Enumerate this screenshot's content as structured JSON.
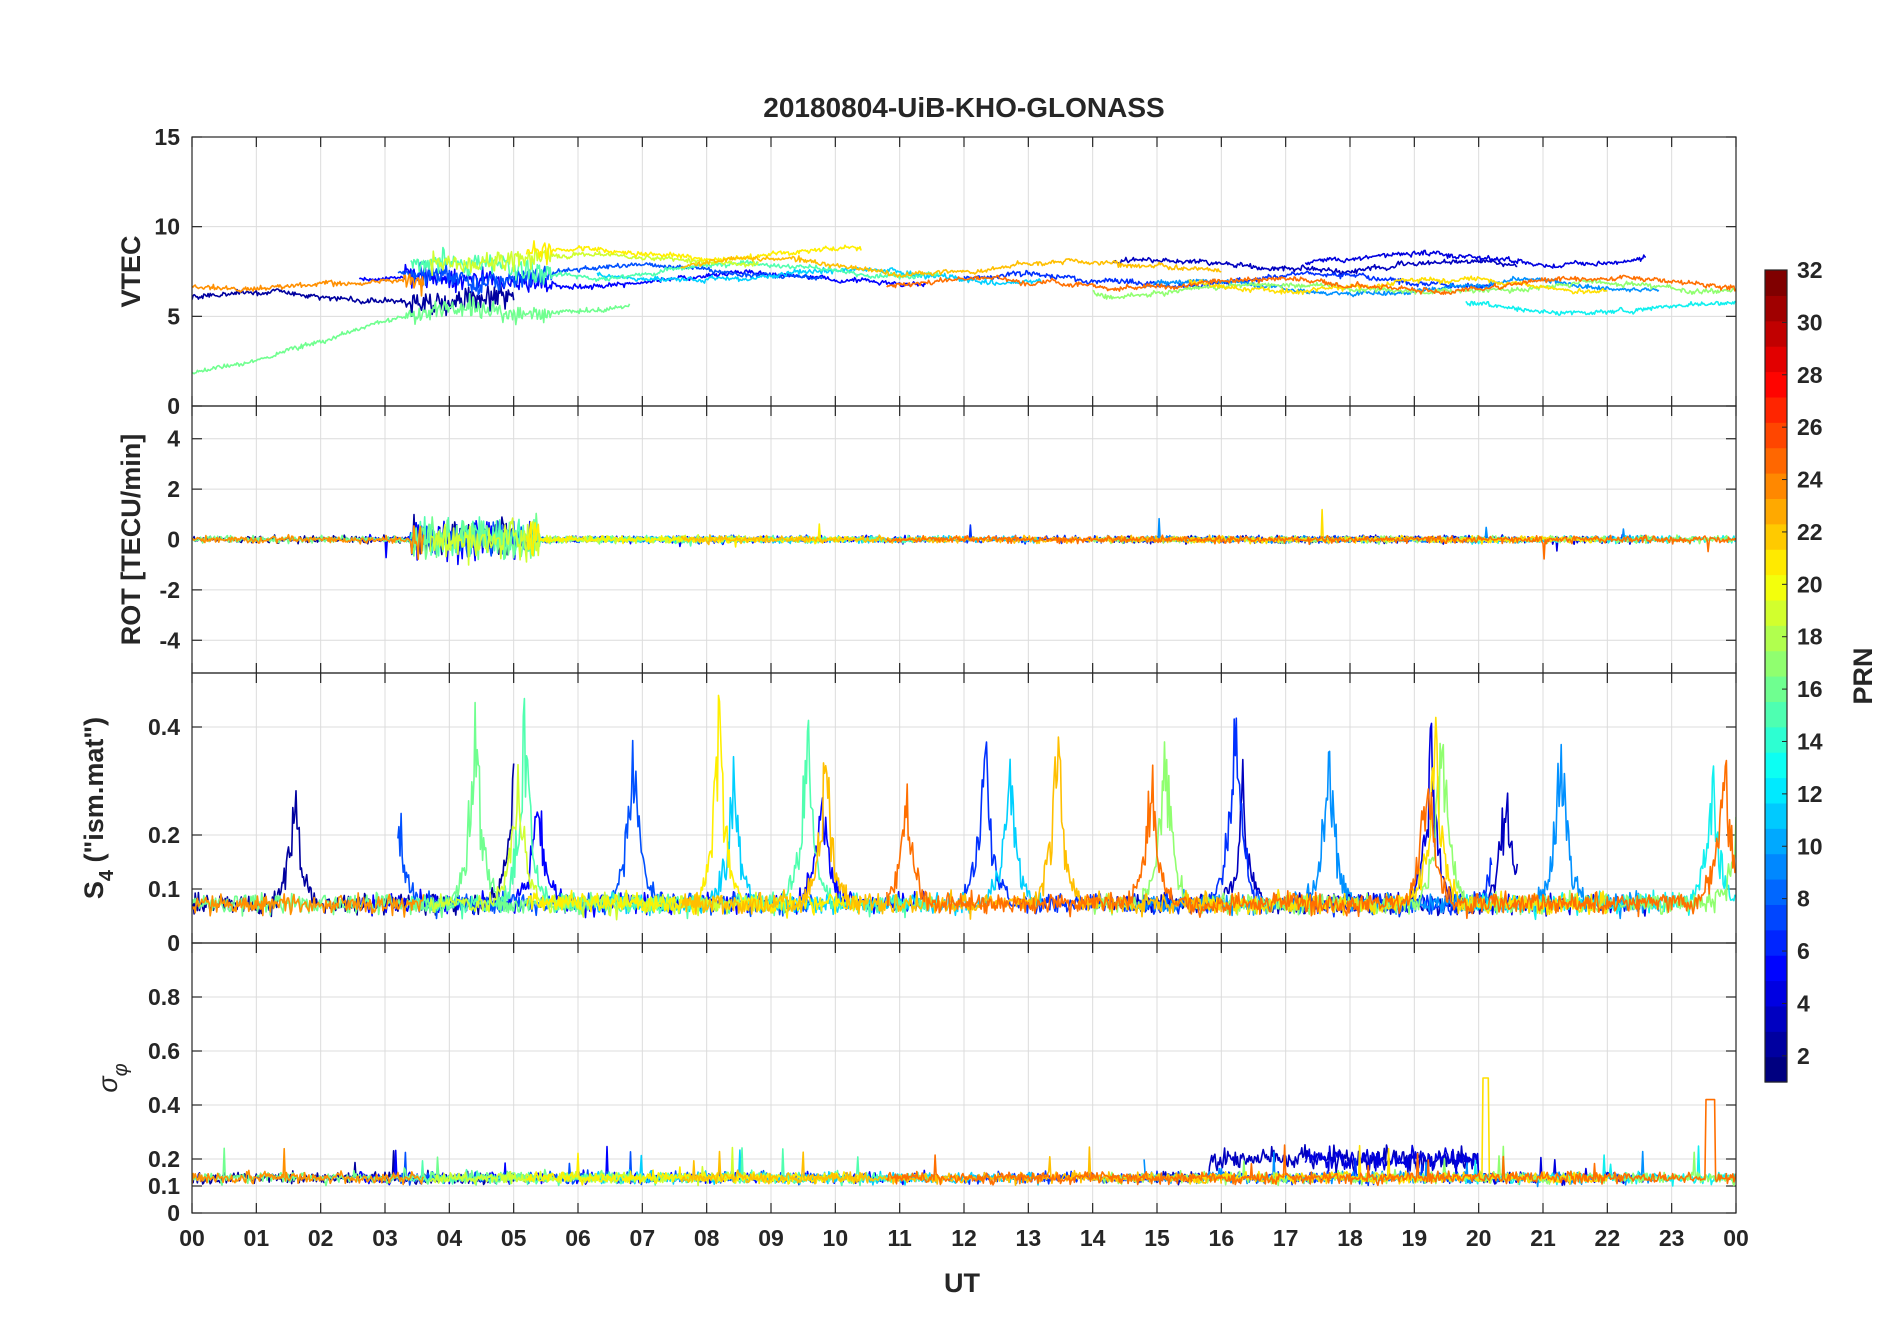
{
  "chart_data": [
    {
      "type": "line",
      "title": "20180804-UiB-KHO-GLONASS",
      "ylabel": "VTEC",
      "ylim": [
        0,
        15
      ],
      "yticks": [
        0,
        5,
        10,
        15
      ],
      "yticklabels": [
        "0",
        "5",
        "10",
        "15"
      ],
      "xlim": [
        0,
        24
      ],
      "series_description": "Vertical TEC per GLONASS PRN",
      "trend_profile": "vtec"
    },
    {
      "type": "line",
      "ylabel": "ROT [TECU/min]",
      "ylim": [
        -5.3,
        5.3
      ],
      "yticks": [
        -4,
        -2,
        0,
        2,
        4
      ],
      "yticklabels": [
        "-4",
        "-2",
        "0",
        "2",
        "4"
      ],
      "xlim": [
        0,
        24
      ],
      "trend_profile": "rot"
    },
    {
      "type": "line",
      "ylabel": "S4 (\"ism.mat\")",
      "ylabel_main": "S",
      "ylabel_sub": "4",
      "ylabel_rest": " (\"ism.mat\")",
      "ylim": [
        0,
        0.5
      ],
      "yticks": [
        0,
        0.1,
        0.2,
        0.4
      ],
      "yticklabels": [
        "0",
        "0.1",
        "0.2",
        "0.4"
      ],
      "xlim": [
        0,
        24
      ],
      "trend_profile": "s4"
    },
    {
      "type": "line",
      "ylabel": "σφ",
      "ylabel_main": "σ",
      "ylabel_sub": "φ",
      "ylim": [
        0,
        1
      ],
      "yticks": [
        0,
        0.1,
        0.2,
        0.4,
        0.6,
        0.8
      ],
      "yticklabels": [
        "0",
        "0.1",
        "0.2",
        "0.4",
        "0.6",
        "0.8"
      ],
      "xlim": [
        0,
        24
      ],
      "trend_profile": "sigphi"
    }
  ],
  "x_axis": {
    "label": "UT",
    "ticks": [
      0,
      1,
      2,
      3,
      4,
      5,
      6,
      7,
      8,
      9,
      10,
      11,
      12,
      13,
      14,
      15,
      16,
      17,
      18,
      19,
      20,
      21,
      22,
      23,
      24
    ],
    "ticklabels": [
      "00",
      "01",
      "02",
      "03",
      "04",
      "05",
      "06",
      "07",
      "08",
      "09",
      "10",
      "11",
      "12",
      "13",
      "14",
      "15",
      "16",
      "17",
      "18",
      "19",
      "20",
      "21",
      "22",
      "23",
      "00"
    ]
  },
  "colorbar": {
    "label": "PRN",
    "range": [
      1,
      32
    ],
    "ticks": [
      2,
      4,
      6,
      8,
      10,
      12,
      14,
      16,
      18,
      20,
      22,
      24,
      26,
      28,
      30,
      32
    ],
    "ticklabels": [
      "2",
      "4",
      "6",
      "8",
      "10",
      "12",
      "14",
      "16",
      "18",
      "20",
      "22",
      "24",
      "26",
      "28",
      "30",
      "32"
    ],
    "colormap": "jet",
    "levels": 32
  },
  "prn_series": [
    {
      "prn": 1,
      "start": 0.0,
      "end": 5.0,
      "vtec": 6.0,
      "color": "#00009f"
    },
    {
      "prn": 2,
      "start": 14.3,
      "end": 20.6,
      "vtec": 7.8,
      "color": "#0000bf"
    },
    {
      "prn": 3,
      "start": 17.3,
      "end": 22.6,
      "vtec": 8.2,
      "color": "#0000df"
    },
    {
      "prn": 4,
      "start": 2.6,
      "end": 11.4,
      "vtec": 7.0,
      "color": "#0000ff"
    },
    {
      "prn": 6,
      "start": 12.0,
      "end": 20.2,
      "vtec": 7.0,
      "color": "#0030ff"
    },
    {
      "prn": 7,
      "start": 3.2,
      "end": 9.8,
      "vtec": 7.4,
      "color": "#0050ff"
    },
    {
      "prn": 9,
      "start": 14.8,
      "end": 22.8,
      "vtec": 6.6,
      "color": "#0090ff"
    },
    {
      "prn": 11,
      "start": 6.3,
      "end": 13.2,
      "vtec": 7.2,
      "color": "#00d0ff"
    },
    {
      "prn": 12,
      "start": 19.8,
      "end": 24.0,
      "vtec": 5.5,
      "color": "#10f0ef"
    },
    {
      "prn": 14,
      "start": 3.4,
      "end": 11.6,
      "vtec": 7.6,
      "color": "#50ffaf"
    },
    {
      "prn": 15,
      "start": 0.0,
      "end": 6.8,
      "vtec": 5.4,
      "color": "#70ff8f"
    },
    {
      "prn": 16,
      "start": 14.0,
      "end": 24.0,
      "vtec": 6.6,
      "color": "#90ff6f"
    },
    {
      "prn": 18,
      "start": 3.7,
      "end": 8.8,
      "vtec": 8.2,
      "color": "#cfff30"
    },
    {
      "prn": 20,
      "start": 5.2,
      "end": 10.4,
      "vtec": 8.6,
      "color": "#ffef00"
    },
    {
      "prn": 21,
      "start": 15.5,
      "end": 22.0,
      "vtec": 6.8,
      "color": "#ffdf00"
    },
    {
      "prn": 22,
      "start": 7.6,
      "end": 16.0,
      "vtec": 7.8,
      "color": "#ffbf00"
    },
    {
      "prn": 24,
      "start": 0.0,
      "end": 3.6,
      "vtec": 6.7,
      "color": "#ff8f00"
    },
    {
      "prn": 25,
      "start": 10.8,
      "end": 24.0,
      "vtec": 6.8,
      "color": "#ff6f00"
    }
  ]
}
